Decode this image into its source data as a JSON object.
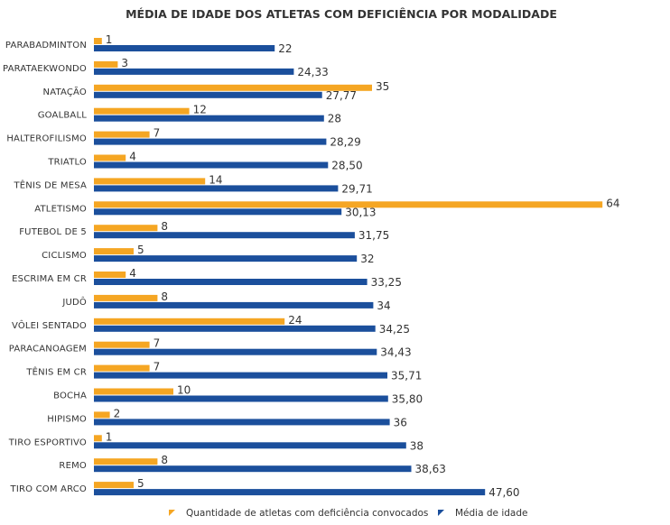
{
  "colors": {
    "quantity": "#F5A623",
    "age": "#1B4F9C",
    "text": "#333333"
  },
  "chart_data": {
    "type": "bar",
    "orientation": "horizontal",
    "title": "MÉDIA DE IDADE DOS ATLETAS COM DEFICIÊNCIA POR MODALIDADE",
    "categories": [
      "PARABADMINTON",
      "PARATAEKWONDO",
      "NATAÇÃO",
      "GOALBALL",
      "HALTEROFILISMO",
      "TRIATLO",
      "TÊNIS DE MESA",
      "ATLETISMO",
      "FUTEBOL DE 5",
      "CICLISMO",
      "ESCRIMA EM CR",
      "JUDÔ",
      "VÔLEI SENTADO",
      "PARACANOAGEM",
      "TÊNIS EM CR",
      "BOCHA",
      "HIPISMO",
      "TIRO ESPORTIVO",
      "REMO",
      "TIRO COM ARCO"
    ],
    "series": [
      {
        "name": "Quantidade de atletas com deficiência convocados",
        "values": [
          1,
          3,
          35,
          12,
          7,
          4,
          14,
          64,
          8,
          5,
          4,
          8,
          24,
          7,
          7,
          10,
          2,
          1,
          8,
          5
        ],
        "labels": [
          "1",
          "3",
          "35",
          "12",
          "7",
          "4",
          "14",
          "64",
          "8",
          "5",
          "4",
          "8",
          "24",
          "7",
          "7",
          "10",
          "2",
          "1",
          "8",
          "5"
        ]
      },
      {
        "name": "Média de idade",
        "values": [
          22,
          24.33,
          27.77,
          28,
          28.29,
          28.5,
          29.71,
          30.13,
          31.75,
          32,
          33.25,
          34,
          34.25,
          34.43,
          35.71,
          35.8,
          36,
          38,
          38.63,
          47.6
        ],
        "labels": [
          "22",
          "24,33",
          "27,77",
          "28",
          "28,29",
          "28,50",
          "29,71",
          "30,13",
          "31,75",
          "32",
          "33,25",
          "34",
          "34,25",
          "34,43",
          "35,71",
          "35,80",
          "36",
          "38",
          "38,63",
          "47,60"
        ]
      }
    ],
    "legend_position": "bottom",
    "grid": false
  }
}
